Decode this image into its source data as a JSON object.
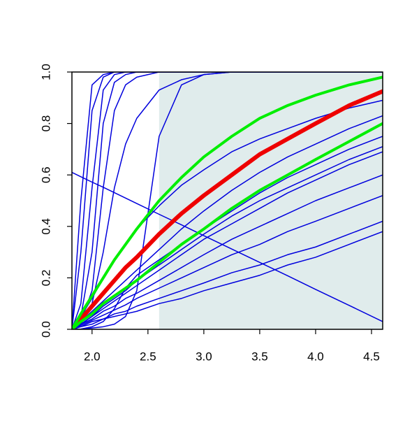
{
  "chart_data": {
    "type": "line",
    "x": [
      1.82,
      1.9,
      2.0,
      2.1,
      2.2,
      2.3,
      2.4,
      2.6,
      2.8,
      3.0,
      3.25,
      3.5,
      3.75,
      4.0,
      4.3,
      4.6
    ],
    "xlim": [
      1.82,
      4.6
    ],
    "ylim": [
      0,
      1
    ],
    "xticks": [
      {
        "value": 2.0,
        "label": "2.0"
      },
      {
        "value": 2.5,
        "label": "2.5"
      },
      {
        "value": 3.0,
        "label": "3.0"
      },
      {
        "value": 3.5,
        "label": "3.5"
      },
      {
        "value": 4.0,
        "label": "4.0"
      },
      {
        "value": 4.5,
        "label": "4.5"
      }
    ],
    "yticks": [
      {
        "value": 0,
        "label": "0.0"
      },
      {
        "value": 0.2,
        "label": "0.2"
      },
      {
        "value": 0.4,
        "label": "0.4"
      },
      {
        "value": 0.6,
        "label": "0.6"
      },
      {
        "value": 0.8,
        "label": "0.8"
      },
      {
        "value": 1,
        "label": "1.0"
      }
    ],
    "shaded_region": {
      "x": [
        2.6,
        4.6
      ],
      "y": [
        0,
        1
      ],
      "color": "#e0ecec"
    },
    "series": [
      {
        "color": "#0000dd",
        "width": 1.5,
        "values": [
          0,
          0.5,
          0.95,
          0.99,
          1,
          1,
          1,
          1,
          1,
          1,
          1,
          1,
          1,
          1,
          1,
          1
        ]
      },
      {
        "color": "#0000dd",
        "width": 1.5,
        "values": [
          0,
          0.3,
          0.85,
          0.98,
          1,
          1,
          1,
          1,
          1,
          1,
          1,
          1,
          1,
          1,
          1,
          1
        ]
      },
      {
        "color": "#0000dd",
        "width": 1.5,
        "values": [
          0,
          0.1,
          0.55,
          0.93,
          0.99,
          1,
          1,
          1,
          1,
          1,
          1,
          1,
          1,
          1,
          1,
          1
        ]
      },
      {
        "color": "#0000dd",
        "width": 1.5,
        "values": [
          0,
          0.05,
          0.3,
          0.8,
          0.96,
          0.99,
          1,
          1,
          1,
          1,
          1,
          1,
          1,
          1,
          1,
          1
        ]
      },
      {
        "color": "#0000dd",
        "width": 1.5,
        "values": [
          0,
          0.03,
          0.15,
          0.55,
          0.85,
          0.95,
          0.98,
          1,
          1,
          1,
          1,
          1,
          1,
          1,
          1,
          1
        ]
      },
      {
        "color": "#0000dd",
        "width": 1.5,
        "values": [
          0,
          0.02,
          0.1,
          0.3,
          0.55,
          0.72,
          0.82,
          0.93,
          0.97,
          0.99,
          1,
          1,
          1,
          1,
          1,
          1
        ]
      },
      {
        "color": "#0000dd",
        "width": 1.5,
        "values": [
          0,
          0,
          0.005,
          0.01,
          0.02,
          0.05,
          0.15,
          0.75,
          0.95,
          0.99,
          1,
          1,
          1,
          1,
          1,
          1
        ]
      },
      {
        "color": "#0000dd",
        "width": 1.5,
        "values": [
          0,
          0.05,
          0.12,
          0.2,
          0.27,
          0.33,
          0.39,
          0.48,
          0.56,
          0.62,
          0.69,
          0.74,
          0.78,
          0.82,
          0.86,
          0.89
        ]
      },
      {
        "color": "#0000dd",
        "width": 1.5,
        "values": [
          0,
          0.03,
          0.07,
          0.11,
          0.15,
          0.19,
          0.23,
          0.31,
          0.39,
          0.46,
          0.54,
          0.61,
          0.67,
          0.72,
          0.78,
          0.83
        ]
      },
      {
        "color": "#0000dd",
        "width": 1.5,
        "values": [
          0,
          0.001,
          0.01,
          0.03,
          0.08,
          0.16,
          0.21,
          0.27,
          0.33,
          0.39,
          0.46,
          0.53,
          0.59,
          0.64,
          0.7,
          0.75
        ]
      },
      {
        "color": "#0000dd",
        "width": 1.5,
        "values": [
          0,
          0.02,
          0.05,
          0.09,
          0.12,
          0.15,
          0.19,
          0.25,
          0.31,
          0.37,
          0.44,
          0.5,
          0.55,
          0.6,
          0.66,
          0.71
        ]
      },
      {
        "color": "#0000dd",
        "width": 1.5,
        "values": [
          0,
          0.02,
          0.05,
          0.08,
          0.11,
          0.14,
          0.17,
          0.23,
          0.29,
          0.35,
          0.41,
          0.47,
          0.53,
          0.58,
          0.64,
          0.69
        ]
      },
      {
        "color": "#0000dd",
        "width": 1.5,
        "values": [
          0,
          0.02,
          0.04,
          0.07,
          0.09,
          0.12,
          0.14,
          0.19,
          0.24,
          0.29,
          0.35,
          0.4,
          0.45,
          0.5,
          0.55,
          0.6
        ]
      },
      {
        "color": "#0000dd",
        "width": 1.5,
        "values": [
          0,
          0.015,
          0.035,
          0.055,
          0.075,
          0.095,
          0.12,
          0.16,
          0.2,
          0.24,
          0.29,
          0.33,
          0.38,
          0.42,
          0.47,
          0.52
        ]
      },
      {
        "color": "#0000dd",
        "width": 1.5,
        "values": [
          0,
          0.01,
          0.03,
          0.04,
          0.06,
          0.07,
          0.09,
          0.12,
          0.15,
          0.18,
          0.22,
          0.25,
          0.29,
          0.32,
          0.37,
          0.42
        ]
      },
      {
        "color": "#0000dd",
        "width": 1.5,
        "values": [
          0,
          0.01,
          0.02,
          0.04,
          0.05,
          0.06,
          0.07,
          0.1,
          0.12,
          0.15,
          0.18,
          0.21,
          0.25,
          0.28,
          0.33,
          0.38
        ]
      },
      {
        "color": "#0000dd",
        "width": 1.5,
        "values": [
          0.61,
          0.593,
          0.572,
          0.552,
          0.531,
          0.51,
          0.489,
          0.447,
          0.406,
          0.364,
          0.312,
          0.26,
          0.208,
          0.155,
          0.093,
          0.03
        ]
      },
      {
        "color": "#ee0000",
        "width": 6,
        "values": [
          0,
          0.04,
          0.09,
          0.14,
          0.19,
          0.24,
          0.28,
          0.37,
          0.45,
          0.52,
          0.6,
          0.68,
          0.74,
          0.8,
          0.87,
          0.925
        ]
      },
      {
        "color": "#00ee00",
        "width": 4,
        "values": [
          0,
          0.06,
          0.13,
          0.2,
          0.27,
          0.33,
          0.39,
          0.5,
          0.59,
          0.67,
          0.75,
          0.82,
          0.87,
          0.91,
          0.95,
          0.98
        ]
      },
      {
        "color": "#00ee00",
        "width": 4,
        "values": [
          0,
          0.03,
          0.06,
          0.1,
          0.13,
          0.16,
          0.19,
          0.26,
          0.33,
          0.39,
          0.47,
          0.54,
          0.6,
          0.66,
          0.73,
          0.8
        ]
      }
    ]
  }
}
